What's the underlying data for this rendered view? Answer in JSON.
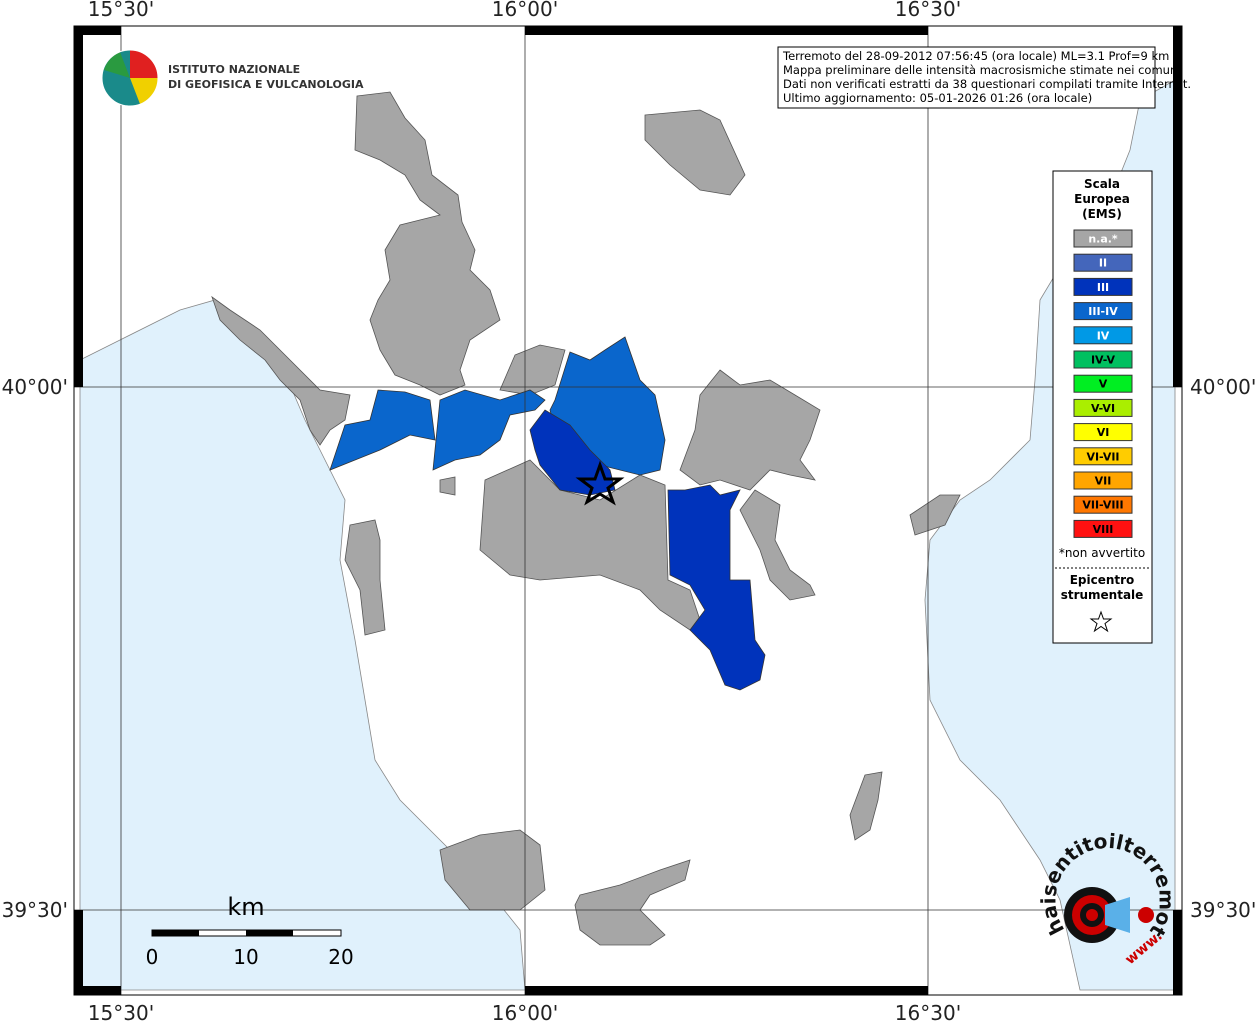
{
  "header": {
    "institute": [
      "ISTITUTO NAZIONALE",
      "DI GEOFISICA E VULCANOLOGIA"
    ]
  },
  "info": [
    "Terremoto del 28-09-2012 07:56:45 (ora locale) ML=3.1 Prof=9 km",
    "Mappa preliminare delle intensità macrosismiche stimate nei comuni",
    "Dati non verificati estratti da 38 questionari compilati tramite Internet.",
    "Ultimo aggiornamento: 05-01-2026 01:26 (ora locale)"
  ],
  "longitude_labels": [
    "15°30'",
    "16°00'",
    "16°30'"
  ],
  "latitude_labels": [
    "40°00'",
    "39°30'"
  ],
  "legend": {
    "title": [
      "Scala",
      "Europea",
      "(EMS)"
    ],
    "items": [
      {
        "label": "n.a.*",
        "color": "#a6a6a6"
      },
      {
        "label": "II",
        "color": "#4466bb"
      },
      {
        "label": "III",
        "color": "#0033bb"
      },
      {
        "label": "III-IV",
        "color": "#0a66cc"
      },
      {
        "label": "IV",
        "color": "#0099e6"
      },
      {
        "label": "IV-V",
        "color": "#00c060"
      },
      {
        "label": "V",
        "color": "#00ee22"
      },
      {
        "label": "V-VI",
        "color": "#aaee00"
      },
      {
        "label": "VI",
        "color": "#ffff00"
      },
      {
        "label": "VI-VII",
        "color": "#ffcc00"
      },
      {
        "label": "VII",
        "color": "#ffa500"
      },
      {
        "label": "VII-VIII",
        "color": "#ff7700"
      },
      {
        "label": "VIII",
        "color": "#ff1111"
      }
    ],
    "note": "*non avvertito",
    "epicenter": [
      "Epicentro",
      "strumentale"
    ]
  },
  "scale": {
    "unit": "km",
    "labels": [
      "0",
      "10",
      "20"
    ]
  },
  "brand": {
    "site": "haisentitoilterremoto.it",
    "prefix": "www."
  }
}
